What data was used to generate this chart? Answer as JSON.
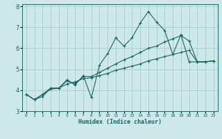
{
  "xlabel": "Humidex (Indice chaleur)",
  "bg_color": "#cce8e8",
  "grid_color": "#aacaca",
  "line_color": "#1a6464",
  "x_values": [
    0,
    1,
    2,
    3,
    4,
    5,
    6,
    7,
    8,
    9,
    10,
    11,
    12,
    13,
    14,
    15,
    16,
    17,
    18,
    19,
    20,
    21,
    22,
    23
  ],
  "line1_y": [
    3.8,
    3.55,
    3.7,
    4.1,
    4.1,
    4.5,
    4.25,
    4.7,
    3.65,
    5.2,
    5.75,
    6.5,
    6.1,
    6.5,
    7.2,
    7.75,
    7.25,
    6.85,
    5.7,
    6.65,
    5.35,
    5.35,
    5.35,
    5.4
  ],
  "line2_y": [
    3.8,
    3.55,
    3.8,
    4.1,
    4.1,
    4.45,
    4.3,
    4.65,
    4.65,
    4.85,
    5.05,
    5.25,
    5.45,
    5.6,
    5.8,
    6.0,
    6.1,
    6.3,
    6.45,
    6.6,
    6.35,
    5.35,
    5.35,
    5.4
  ],
  "line3_y": [
    3.8,
    3.55,
    3.8,
    4.05,
    4.1,
    4.3,
    4.4,
    4.55,
    4.6,
    4.7,
    4.8,
    4.95,
    5.05,
    5.15,
    5.25,
    5.4,
    5.5,
    5.6,
    5.7,
    5.8,
    5.9,
    5.35,
    5.35,
    5.4
  ],
  "ylim": [
    3.0,
    8.1
  ],
  "xlim": [
    -0.5,
    23.5
  ],
  "yticks": [
    3,
    4,
    5,
    6,
    7,
    8
  ],
  "xtick_labels": [
    "0",
    "1",
    "2",
    "3",
    "4",
    "5",
    "6",
    "7",
    "8",
    "9",
    "10",
    "11",
    "12",
    "13",
    "14",
    "15",
    "16",
    "17",
    "18",
    "19",
    "20",
    "21",
    "22",
    "23"
  ],
  "figsize": [
    3.2,
    2.0
  ],
  "dpi": 100
}
